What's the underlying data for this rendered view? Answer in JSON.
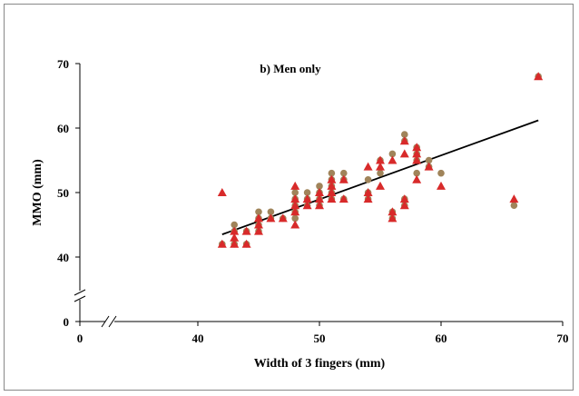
{
  "chart_data": {
    "type": "scatter",
    "title": "b) Men only",
    "xlabel": "Width of 3 fingers (mm)",
    "ylabel": "MMO (mm)",
    "x_ticks": [
      0,
      40,
      50,
      60,
      70
    ],
    "y_ticks": [
      0,
      40,
      50,
      60,
      70
    ],
    "axis_break": true,
    "grid": false,
    "colors": {
      "circles": "#a0845a",
      "triangles": "#d82a2a",
      "trendline": "#000000"
    },
    "series": [
      {
        "marker": "circle",
        "points": [
          [
            42,
            42
          ],
          [
            43,
            42
          ],
          [
            43,
            44
          ],
          [
            43,
            45
          ],
          [
            44,
            42
          ],
          [
            44,
            44
          ],
          [
            45,
            44
          ],
          [
            45,
            45
          ],
          [
            45,
            46
          ],
          [
            45,
            47
          ],
          [
            46,
            46
          ],
          [
            46,
            47
          ],
          [
            47,
            46
          ],
          [
            48,
            46
          ],
          [
            48,
            47
          ],
          [
            48,
            48
          ],
          [
            48,
            49
          ],
          [
            48,
            50
          ],
          [
            49,
            48
          ],
          [
            49,
            49
          ],
          [
            49,
            50
          ],
          [
            50,
            48
          ],
          [
            50,
            49
          ],
          [
            50,
            50
          ],
          [
            50,
            51
          ],
          [
            51,
            49
          ],
          [
            51,
            50
          ],
          [
            51,
            51
          ],
          [
            51,
            52
          ],
          [
            51,
            53
          ],
          [
            52,
            49
          ],
          [
            52,
            52
          ],
          [
            52,
            53
          ],
          [
            54,
            49
          ],
          [
            54,
            50
          ],
          [
            54,
            52
          ],
          [
            55,
            53
          ],
          [
            55,
            55
          ],
          [
            56,
            46
          ],
          [
            56,
            47
          ],
          [
            56,
            56
          ],
          [
            57,
            48
          ],
          [
            57,
            49
          ],
          [
            57,
            58
          ],
          [
            57,
            59
          ],
          [
            58,
            53
          ],
          [
            58,
            55
          ],
          [
            58,
            56
          ],
          [
            58,
            57
          ],
          [
            59,
            54
          ],
          [
            59,
            55
          ],
          [
            60,
            53
          ],
          [
            66,
            48
          ],
          [
            68,
            68
          ]
        ]
      },
      {
        "marker": "triangle",
        "points": [
          [
            42,
            50
          ],
          [
            42,
            42
          ],
          [
            43,
            42
          ],
          [
            43,
            43
          ],
          [
            43,
            44
          ],
          [
            44,
            42
          ],
          [
            44,
            44
          ],
          [
            45,
            44
          ],
          [
            45,
            45
          ],
          [
            45,
            46
          ],
          [
            46,
            46
          ],
          [
            47,
            46
          ],
          [
            48,
            45
          ],
          [
            48,
            47
          ],
          [
            48,
            48
          ],
          [
            48,
            49
          ],
          [
            48,
            51
          ],
          [
            49,
            48
          ],
          [
            49,
            49
          ],
          [
            50,
            48
          ],
          [
            50,
            49
          ],
          [
            50,
            50
          ],
          [
            51,
            49
          ],
          [
            51,
            50
          ],
          [
            51,
            51
          ],
          [
            51,
            52
          ],
          [
            52,
            49
          ],
          [
            52,
            52
          ],
          [
            54,
            49
          ],
          [
            54,
            50
          ],
          [
            54,
            54
          ],
          [
            55,
            51
          ],
          [
            55,
            54
          ],
          [
            55,
            55
          ],
          [
            56,
            46
          ],
          [
            56,
            47
          ],
          [
            56,
            55
          ],
          [
            57,
            48
          ],
          [
            57,
            49
          ],
          [
            57,
            56
          ],
          [
            57,
            58
          ],
          [
            58,
            52
          ],
          [
            58,
            55
          ],
          [
            58,
            56
          ],
          [
            58,
            57
          ],
          [
            59,
            54
          ],
          [
            60,
            51
          ],
          [
            66,
            49
          ],
          [
            68,
            68
          ]
        ]
      }
    ],
    "trendline": {
      "x": [
        42,
        68
      ],
      "y": [
        43.5,
        61.2
      ]
    }
  }
}
